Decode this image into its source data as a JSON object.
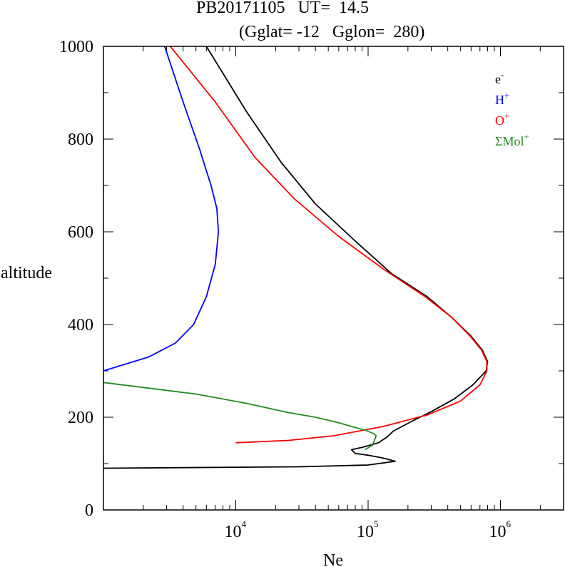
{
  "chart_data": {
    "type": "line",
    "title_line1": "PB20171105   UT=  14.5",
    "title_line2": "(Gglat= -12   Gglon=  280)",
    "xlabel": "Ne",
    "ylabel": "altitude",
    "x_scale": "log",
    "xlim": [
      1000,
      3000000
    ],
    "ylim": [
      0,
      1000
    ],
    "x_tick_labels": [
      {
        "base": "10",
        "exp": "4",
        "value": 10000
      },
      {
        "base": "10",
        "exp": "5",
        "value": 100000
      },
      {
        "base": "10",
        "exp": "6",
        "value": 1000000
      }
    ],
    "y_tick_labels": [
      "0",
      "200",
      "400",
      "600",
      "800",
      "1000"
    ],
    "y_ticks": [
      0,
      200,
      400,
      600,
      800,
      1000
    ],
    "legend_position": "top-right",
    "series": [
      {
        "name": "e",
        "sup": "-",
        "color": "#000000",
        "points": [
          [
            1000,
            90
          ],
          [
            30000,
            93
          ],
          [
            100000,
            97
          ],
          [
            160000,
            105
          ],
          [
            130000,
            112
          ],
          [
            100000,
            118
          ],
          [
            80000,
            122
          ],
          [
            75000,
            130
          ],
          [
            90000,
            135
          ],
          [
            120000,
            145
          ],
          [
            140000,
            158
          ],
          [
            155000,
            170
          ],
          [
            210000,
            190
          ],
          [
            300000,
            212
          ],
          [
            450000,
            240
          ],
          [
            620000,
            270
          ],
          [
            780000,
            300
          ],
          [
            800000,
            320
          ],
          [
            730000,
            345
          ],
          [
            600000,
            375
          ],
          [
            430000,
            415
          ],
          [
            280000,
            460
          ],
          [
            150000,
            510
          ],
          [
            80000,
            580
          ],
          [
            40000,
            660
          ],
          [
            22000,
            750
          ],
          [
            12000,
            860
          ],
          [
            6000,
            1000
          ]
        ]
      },
      {
        "name": "H",
        "sup": "+",
        "color": "#0000ff",
        "points": [
          [
            1000,
            300
          ],
          [
            2200,
            330
          ],
          [
            3500,
            360
          ],
          [
            4800,
            400
          ],
          [
            6000,
            460
          ],
          [
            7000,
            530
          ],
          [
            7400,
            600
          ],
          [
            7200,
            650
          ],
          [
            6500,
            700
          ],
          [
            5300,
            780
          ],
          [
            4000,
            880
          ],
          [
            2900,
            1000
          ]
        ]
      },
      {
        "name": "O",
        "sup": "+",
        "color": "#ff0000",
        "points": [
          [
            10000,
            145
          ],
          [
            25000,
            150
          ],
          [
            55000,
            160
          ],
          [
            130000,
            180
          ],
          [
            280000,
            205
          ],
          [
            500000,
            235
          ],
          [
            700000,
            270
          ],
          [
            790000,
            300
          ],
          [
            790000,
            320
          ],
          [
            720000,
            345
          ],
          [
            590000,
            375
          ],
          [
            430000,
            415
          ],
          [
            270000,
            460
          ],
          [
            130000,
            520
          ],
          [
            60000,
            590
          ],
          [
            28000,
            670
          ],
          [
            14000,
            760
          ],
          [
            7000,
            880
          ],
          [
            3200,
            1000
          ]
        ]
      },
      {
        "name": "ΣMol",
        "sup": "+",
        "color": "#228b22",
        "points": [
          [
            1000,
            275
          ],
          [
            5000,
            250
          ],
          [
            12000,
            230
          ],
          [
            25000,
            210
          ],
          [
            40000,
            200
          ],
          [
            60000,
            188
          ],
          [
            75000,
            180
          ],
          [
            95000,
            172
          ],
          [
            110000,
            165
          ],
          [
            115000,
            160
          ],
          [
            108000,
            140
          ],
          [
            95000,
            130
          ]
        ]
      }
    ]
  }
}
